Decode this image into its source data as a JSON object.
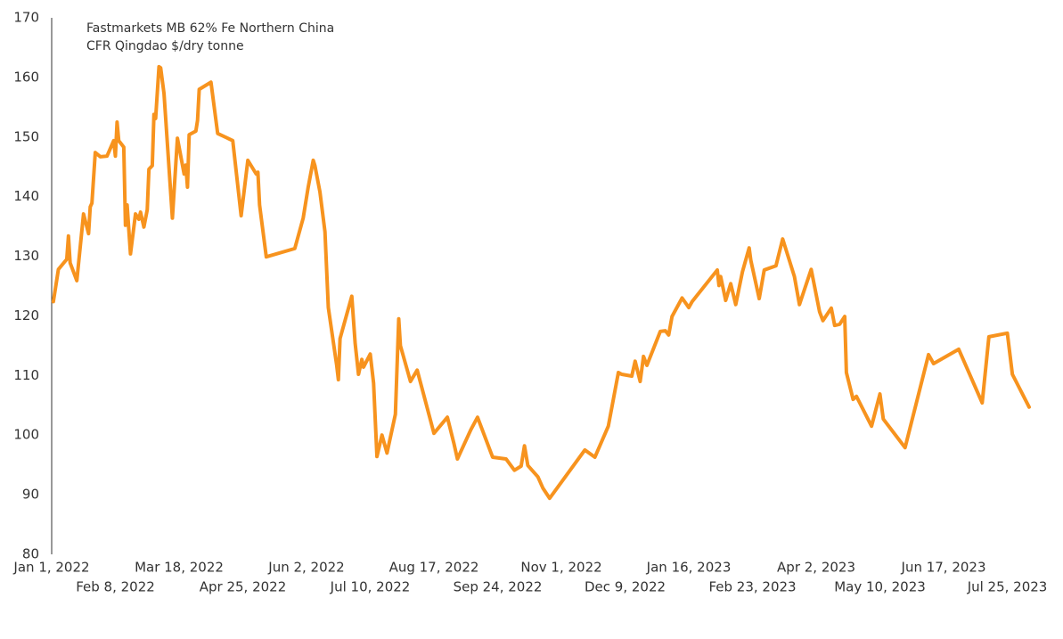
{
  "chart_data": {
    "type": "line",
    "title": "Fastmarkets MB 62% Fe Northern China",
    "subtitle": "CFR Qingdao $/dry tonne",
    "color": "#f7931e",
    "grid": false,
    "xlim": [
      "2022-01-01",
      "2023-08-07"
    ],
    "ylim": [
      80,
      170
    ],
    "yticks": [
      80,
      90,
      100,
      110,
      120,
      130,
      140,
      150,
      160,
      170
    ],
    "xticks": [
      {
        "value": "2022-01-01",
        "label": "Jan 1, 2022"
      },
      {
        "value": "2022-02-08",
        "label": "Feb 8, 2022"
      },
      {
        "value": "2022-03-18",
        "label": "Mar 18, 2022"
      },
      {
        "value": "2022-04-25",
        "label": "Apr 25, 2022"
      },
      {
        "value": "2022-06-02",
        "label": "Jun 2, 2022"
      },
      {
        "value": "2022-07-10",
        "label": "Jul 10, 2022"
      },
      {
        "value": "2022-08-17",
        "label": "Aug 17, 2022"
      },
      {
        "value": "2022-09-24",
        "label": "Sep 24, 2022"
      },
      {
        "value": "2022-11-01",
        "label": "Nov 1, 2022"
      },
      {
        "value": "2022-12-09",
        "label": "Dec 9, 2022"
      },
      {
        "value": "2023-01-16",
        "label": "Jan 16, 2023"
      },
      {
        "value": "2023-02-23",
        "label": "Feb 23, 2023"
      },
      {
        "value": "2023-04-02",
        "label": "Apr 2, 2023"
      },
      {
        "value": "2023-05-10",
        "label": "May 10, 2023"
      },
      {
        "value": "2023-06-17",
        "label": "Jun 17, 2023"
      },
      {
        "value": "2023-07-25",
        "label": "Jul 25, 2023"
      }
    ],
    "x": [
      "2022-01-02",
      "2022-01-05",
      "2022-01-10",
      "2022-01-11",
      "2022-01-12",
      "2022-01-16",
      "2022-01-20",
      "2022-01-23",
      "2022-01-24",
      "2022-01-25",
      "2022-01-27",
      "2022-01-30",
      "2022-02-03",
      "2022-02-07",
      "2022-02-08",
      "2022-02-09",
      "2022-02-10",
      "2022-02-13",
      "2022-02-14",
      "2022-02-15",
      "2022-02-17",
      "2022-02-20",
      "2022-02-22",
      "2022-02-23",
      "2022-02-25",
      "2022-02-27",
      "2022-02-28",
      "2022-03-02",
      "2022-03-03",
      "2022-03-04",
      "2022-03-06",
      "2022-03-07",
      "2022-03-09",
      "2022-03-14",
      "2022-03-17",
      "2022-03-21",
      "2022-03-22",
      "2022-03-23",
      "2022-03-24",
      "2022-03-28",
      "2022-03-29",
      "2022-03-30",
      "2022-04-06",
      "2022-04-10",
      "2022-04-19",
      "2022-04-24",
      "2022-04-28",
      "2022-05-03",
      "2022-05-04",
      "2022-05-05",
      "2022-05-09",
      "2022-05-26",
      "2022-05-31",
      "2022-06-03",
      "2022-06-06",
      "2022-06-07",
      "2022-06-10",
      "2022-06-13",
      "2022-06-15",
      "2022-06-20",
      "2022-06-21",
      "2022-06-22",
      "2022-06-29",
      "2022-07-01",
      "2022-07-03",
      "2022-07-05",
      "2022-07-06",
      "2022-07-10",
      "2022-07-12",
      "2022-07-14",
      "2022-07-17",
      "2022-07-20",
      "2022-07-25",
      "2022-07-27",
      "2022-07-28",
      "2022-08-03",
      "2022-08-07",
      "2022-08-17",
      "2022-08-25",
      "2022-08-29",
      "2022-08-31",
      "2022-09-08",
      "2022-09-12",
      "2022-09-21",
      "2022-09-29",
      "2022-10-04",
      "2022-10-08",
      "2022-10-10",
      "2022-10-12",
      "2022-10-18",
      "2022-10-21",
      "2022-10-25",
      "2022-11-15",
      "2022-11-21",
      "2022-11-29",
      "2022-12-05",
      "2022-12-07",
      "2022-12-13",
      "2022-12-15",
      "2022-12-18",
      "2022-12-20",
      "2022-12-22",
      "2022-12-30",
      "2023-01-02",
      "2023-01-04",
      "2023-01-06",
      "2023-01-12",
      "2023-01-16",
      "2023-01-18",
      "2023-02-02",
      "2023-02-03",
      "2023-02-04",
      "2023-02-07",
      "2023-02-10",
      "2023-02-13",
      "2023-02-17",
      "2023-02-21",
      "2023-02-22",
      "2023-02-27",
      "2023-03-02",
      "2023-03-09",
      "2023-03-13",
      "2023-03-20",
      "2023-03-23",
      "2023-03-30",
      "2023-04-04",
      "2023-04-06",
      "2023-04-11",
      "2023-04-13",
      "2023-04-16",
      "2023-04-19",
      "2023-04-20",
      "2023-04-24",
      "2023-04-26",
      "2023-05-05",
      "2023-05-10",
      "2023-05-12",
      "2023-05-25",
      "2023-06-01",
      "2023-06-08",
      "2023-06-11",
      "2023-06-26",
      "2023-07-10",
      "2023-07-14",
      "2023-07-25",
      "2023-07-28",
      "2023-08-07"
    ],
    "values": [
      122.4,
      127.8,
      129.5,
      133.4,
      128.9,
      125.9,
      137.1,
      133.8,
      138.3,
      138.9,
      147.4,
      146.7,
      146.8,
      149.4,
      146.8,
      152.5,
      149.4,
      148.3,
      135.2,
      138.6,
      130.4,
      137.1,
      136.2,
      137.4,
      134.9,
      137.8,
      144.6,
      145.2,
      153.8,
      153.1,
      161.8,
      161.6,
      157.3,
      136.4,
      149.8,
      143.8,
      145.3,
      141.6,
      150.4,
      151.0,
      152.8,
      158.0,
      159.2,
      150.6,
      149.4,
      136.8,
      146.1,
      143.8,
      144.1,
      138.6,
      129.9,
      131.3,
      136.4,
      141.6,
      146.1,
      145.2,
      140.8,
      134.1,
      121.4,
      111.7,
      109.3,
      116.2,
      123.3,
      115.4,
      110.2,
      112.7,
      111.4,
      113.6,
      108.7,
      96.4,
      100.0,
      97.0,
      103.5,
      119.5,
      115.0,
      109.0,
      110.9,
      100.3,
      103.0,
      98.5,
      96.0,
      100.9,
      103.0,
      96.3,
      96.0,
      94.1,
      94.8,
      98.2,
      94.9,
      93.0,
      91.1,
      89.4,
      97.5,
      96.3,
      101.5,
      110.5,
      110.2,
      109.9,
      112.4,
      109.0,
      113.2,
      111.7,
      117.4,
      117.5,
      116.8,
      119.9,
      123.0,
      121.4,
      122.4,
      127.7,
      125.1,
      126.6,
      122.6,
      125.4,
      121.9,
      127.4,
      131.4,
      129.3,
      122.9,
      127.7,
      128.4,
      132.9,
      126.6,
      121.9,
      127.8,
      120.7,
      119.2,
      121.3,
      118.4,
      118.6,
      119.9,
      110.5,
      106.0,
      106.5,
      101.5,
      106.9,
      102.7,
      97.9,
      105.7,
      113.5,
      112.0,
      114.4,
      105.4,
      116.5,
      117.1,
      110.2,
      104.7
    ]
  }
}
